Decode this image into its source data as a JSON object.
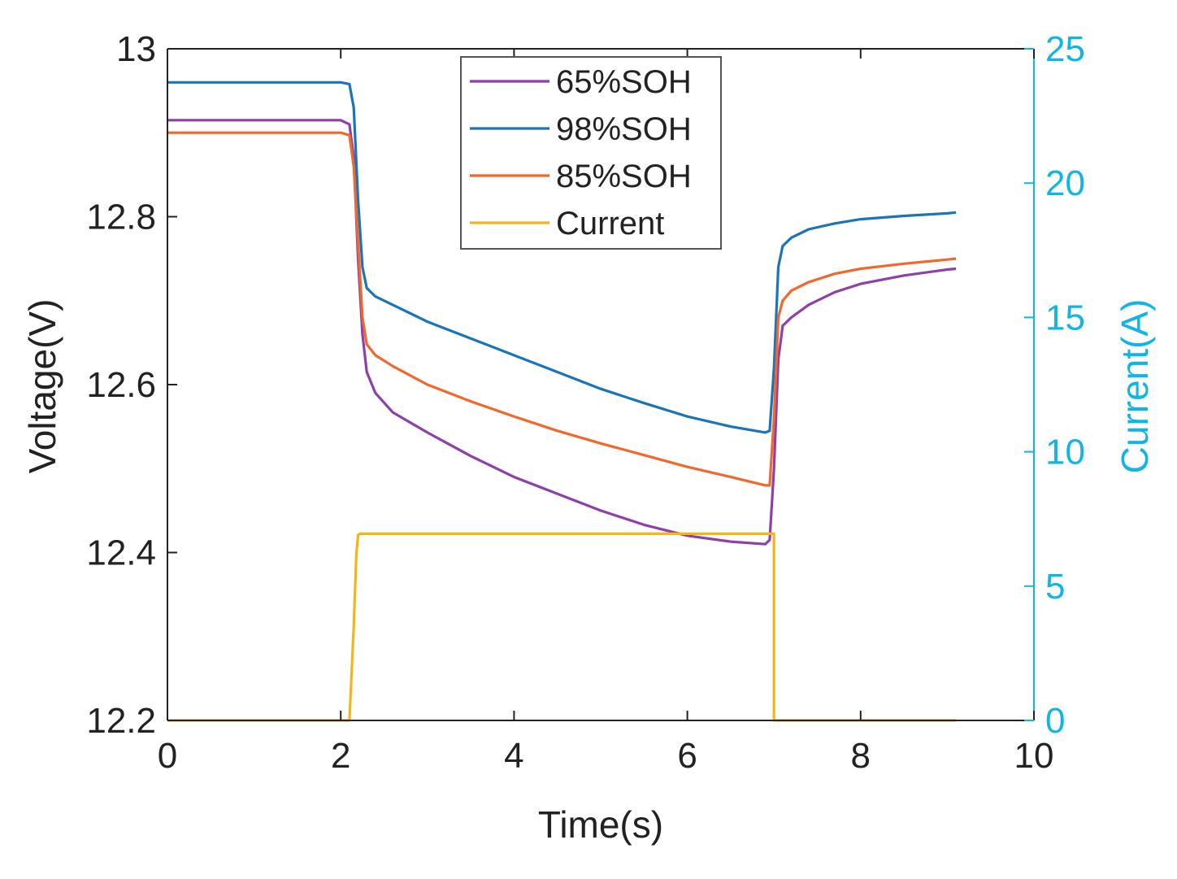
{
  "chart_data": {
    "type": "line",
    "title": "",
    "xlabel": "Time(s)",
    "ylabel_left": "Voltage(V)",
    "ylabel_right": "Current(A)",
    "xlim": [
      0,
      10
    ],
    "ylim_left": [
      12.2,
      13
    ],
    "ylim_right": [
      0,
      25
    ],
    "xticks": [
      "0",
      "2",
      "4",
      "6",
      "8",
      "10"
    ],
    "yticks_left": [
      "12.2",
      "12.4",
      "12.6",
      "12.8",
      "13"
    ],
    "yticks_right": [
      "0",
      "5",
      "10",
      "15",
      "20",
      "25"
    ],
    "grid": false,
    "legend_position": "top-center",
    "colors": {
      "axis": "#222222",
      "right_axis": "#10b4e6"
    },
    "series": [
      {
        "name": "65%SOH",
        "axis": "left",
        "color": "#8e3fa8",
        "x": [
          0,
          2.0,
          2.1,
          2.15,
          2.2,
          2.25,
          2.3,
          2.4,
          2.6,
          3,
          3.5,
          4,
          4.5,
          5,
          5.5,
          6,
          6.5,
          6.9,
          6.95,
          7.0,
          7.05,
          7.1,
          7.2,
          7.4,
          7.7,
          8.0,
          8.5,
          9.0,
          9.1
        ],
        "y": [
          12.915,
          12.915,
          12.91,
          12.87,
          12.75,
          12.66,
          12.615,
          12.59,
          12.567,
          12.543,
          12.515,
          12.49,
          12.47,
          12.45,
          12.433,
          12.42,
          12.413,
          12.41,
          12.415,
          12.5,
          12.63,
          12.67,
          12.68,
          12.695,
          12.71,
          12.72,
          12.73,
          12.737,
          12.738
        ]
      },
      {
        "name": "98%SOH",
        "axis": "left",
        "color": "#1a74b8",
        "x": [
          0,
          2.0,
          2.1,
          2.15,
          2.2,
          2.25,
          2.3,
          2.4,
          2.6,
          3,
          3.5,
          4,
          4.5,
          5,
          5.5,
          6,
          6.5,
          6.9,
          6.95,
          7.0,
          7.05,
          7.1,
          7.2,
          7.4,
          7.7,
          8.0,
          8.5,
          9.0,
          9.1
        ],
        "y": [
          12.96,
          12.96,
          12.958,
          12.93,
          12.82,
          12.74,
          12.715,
          12.705,
          12.695,
          12.675,
          12.655,
          12.635,
          12.615,
          12.595,
          12.578,
          12.562,
          12.55,
          12.543,
          12.545,
          12.62,
          12.74,
          12.765,
          12.775,
          12.785,
          12.792,
          12.797,
          12.801,
          12.804,
          12.805
        ]
      },
      {
        "name": "85%SOH",
        "axis": "left",
        "color": "#f0682e",
        "x": [
          0,
          2.0,
          2.1,
          2.15,
          2.2,
          2.25,
          2.3,
          2.4,
          2.6,
          3,
          3.5,
          4,
          4.5,
          5,
          5.5,
          6,
          6.5,
          6.9,
          6.95,
          7.0,
          7.05,
          7.1,
          7.2,
          7.4,
          7.7,
          8.0,
          8.5,
          9.0,
          9.1
        ],
        "y": [
          12.9,
          12.9,
          12.897,
          12.86,
          12.77,
          12.68,
          12.648,
          12.635,
          12.622,
          12.6,
          12.58,
          12.562,
          12.545,
          12.53,
          12.516,
          12.502,
          12.49,
          12.48,
          12.48,
          12.56,
          12.68,
          12.7,
          12.712,
          12.722,
          12.732,
          12.738,
          12.744,
          12.749,
          12.75
        ]
      },
      {
        "name": "Current",
        "axis": "right",
        "color": "#f4b41a",
        "x": [
          0,
          2.1,
          2.15,
          2.18,
          2.2,
          2.22,
          7.0,
          7.0,
          7.0,
          9.1
        ],
        "y": [
          0,
          0,
          3.5,
          6.2,
          6.9,
          6.95,
          6.95,
          3.5,
          0,
          0
        ]
      }
    ]
  }
}
